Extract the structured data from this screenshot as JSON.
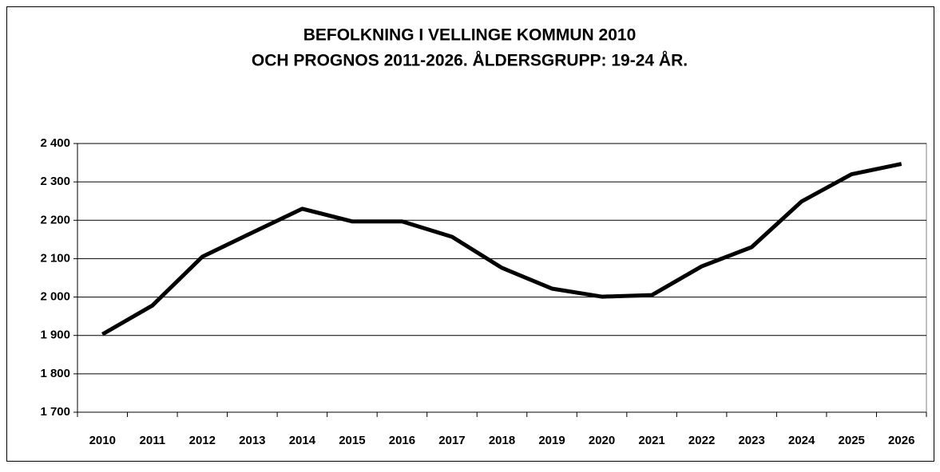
{
  "chart_data": {
    "type": "line",
    "title": [
      "BEFOLKNING I VELLINGE KOMMUN 2010",
      "OCH PROGNOS 2011-2026. ÅLDERSGRUPP: 19-24 ÅR."
    ],
    "categories": [
      "2010",
      "2011",
      "2012",
      "2013",
      "2014",
      "2015",
      "2016",
      "2017",
      "2018",
      "2019",
      "2020",
      "2021",
      "2022",
      "2023",
      "2024",
      "2025",
      "2026"
    ],
    "series": [
      {
        "color": "#000000",
        "values": [
          1903,
          1978,
          2105,
          2168,
          2230,
          2197,
          2197,
          2157,
          2076,
          2022,
          2001,
          2005,
          2080,
          2130,
          2249,
          2320,
          2347
        ]
      }
    ],
    "ylim": [
      1700,
      2400
    ],
    "yticks": [
      {
        "value": 1700,
        "label": "1 700"
      },
      {
        "value": 1800,
        "label": "1 800"
      },
      {
        "value": 1900,
        "label": "1 900"
      },
      {
        "value": 2000,
        "label": "2 000"
      },
      {
        "value": 2100,
        "label": "2 100"
      },
      {
        "value": 2200,
        "label": "2 200"
      },
      {
        "value": 2300,
        "label": "2 300"
      },
      {
        "value": 2400,
        "label": "2 400"
      }
    ],
    "grid": true
  }
}
